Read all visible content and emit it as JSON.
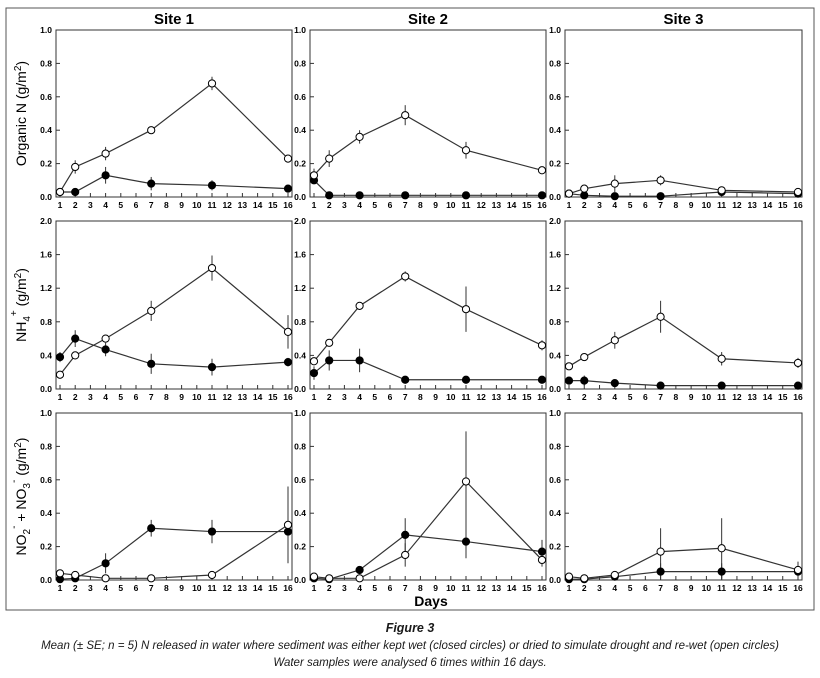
{
  "figure": {
    "x_axis_label": "Days",
    "caption_title": "Figure 3",
    "caption_line1": "Mean (± SE; n = 5) N released in water where sediment was either kept wet (closed circles) or dried to simulate drought and re-wet (open circles)",
    "caption_line2": "Water samples were analysed 6 times within 16 days."
  },
  "chart_data": {
    "type": "line",
    "sites": [
      "Site 1",
      "Site 2",
      "Site 3"
    ],
    "x": [
      1,
      2,
      4,
      7,
      11,
      16
    ],
    "x_ticks": [
      "1",
      "2",
      "3",
      "4",
      "5",
      "6",
      "7",
      "8",
      "9",
      "10",
      "11",
      "12",
      "13",
      "14",
      "15",
      "16"
    ],
    "xlim": [
      1,
      16
    ],
    "xlabel": "Days",
    "legend": {
      "wet": "kept wet (closed circles)",
      "dry": "dried and re-wet (open circles)"
    },
    "rows": [
      {
        "ylabel": "Organic N (g/m²)",
        "ylabel_parts": [
          "Organic N (g/m",
          "2",
          ")"
        ],
        "ylim": [
          0,
          1.0
        ],
        "y_ticks": [
          "0.0",
          "0.2",
          "0.4",
          "0.6",
          "0.8",
          "1.0"
        ],
        "y_tick_values": [
          0,
          0.2,
          0.4,
          0.6,
          0.8,
          1.0
        ],
        "panels": [
          {
            "series": [
              {
                "name": "wet",
                "values": [
                  0.03,
                  0.03,
                  0.13,
                  0.08,
                  0.07,
                  0.05
                ],
                "se": [
                  0.01,
                  0.01,
                  0.05,
                  0.04,
                  0.03,
                  0.01
                ]
              },
              {
                "name": "dry",
                "values": [
                  0.03,
                  0.18,
                  0.26,
                  0.4,
                  0.68,
                  0.23
                ],
                "se": [
                  0.01,
                  0.04,
                  0.04,
                  0.02,
                  0.04,
                  0.02
                ]
              }
            ]
          },
          {
            "series": [
              {
                "name": "wet",
                "values": [
                  0.1,
                  0.01,
                  0.01,
                  0.01,
                  0.01,
                  0.01
                ],
                "se": [
                  0.01,
                  0.005,
                  0.005,
                  0.005,
                  0.005,
                  0.005
                ]
              },
              {
                "name": "dry",
                "values": [
                  0.13,
                  0.23,
                  0.36,
                  0.49,
                  0.28,
                  0.16
                ],
                "se": [
                  0.04,
                  0.05,
                  0.04,
                  0.06,
                  0.05,
                  0.01
                ]
              }
            ]
          },
          {
            "series": [
              {
                "name": "wet",
                "values": [
                  0.02,
                  0.01,
                  0.005,
                  0.005,
                  0.03,
                  0.02
                ],
                "se": [
                  0.01,
                  0.005,
                  0.005,
                  0.005,
                  0.01,
                  0.01
                ]
              },
              {
                "name": "dry",
                "values": [
                  0.02,
                  0.05,
                  0.08,
                  0.1,
                  0.04,
                  0.03
                ],
                "se": [
                  0.01,
                  0.02,
                  0.05,
                  0.03,
                  0.02,
                  0.01
                ]
              }
            ]
          }
        ]
      },
      {
        "ylabel": "NH4+ (g/m²)",
        "ylabel_parts": [
          "NH",
          "4",
          "+",
          " (g/m",
          "2",
          ")"
        ],
        "ylim": [
          0,
          2.0
        ],
        "y_ticks": [
          "0.0",
          "0.4",
          "0.8",
          "1.2",
          "1.6",
          "2.0"
        ],
        "y_tick_values": [
          0,
          0.4,
          0.8,
          1.2,
          1.6,
          2.0
        ],
        "panels": [
          {
            "series": [
              {
                "name": "wet",
                "values": [
                  0.38,
                  0.6,
                  0.47,
                  0.3,
                  0.26,
                  0.32
                ],
                "se": [
                  0.06,
                  0.1,
                  0.08,
                  0.12,
                  0.1,
                  0.05
                ]
              },
              {
                "name": "dry",
                "values": [
                  0.17,
                  0.4,
                  0.6,
                  0.93,
                  1.44,
                  0.68
                ],
                "se": [
                  0.02,
                  0.03,
                  0.04,
                  0.12,
                  0.15,
                  0.2
                ]
              }
            ]
          },
          {
            "series": [
              {
                "name": "wet",
                "values": [
                  0.19,
                  0.34,
                  0.34,
                  0.11,
                  0.11,
                  0.11
                ],
                "se": [
                  0.08,
                  0.12,
                  0.14,
                  0.02,
                  0.02,
                  0.02
                ]
              },
              {
                "name": "dry",
                "values": [
                  0.33,
                  0.55,
                  0.99,
                  1.34,
                  0.95,
                  0.52
                ],
                "se": [
                  0.04,
                  0.04,
                  0.02,
                  0.06,
                  0.27,
                  0.06
                ]
              }
            ]
          },
          {
            "series": [
              {
                "name": "wet",
                "values": [
                  0.1,
                  0.1,
                  0.07,
                  0.04,
                  0.04,
                  0.04
                ],
                "se": [
                  0.04,
                  0.06,
                  0.03,
                  0.01,
                  0.01,
                  0.01
                ]
              },
              {
                "name": "dry",
                "values": [
                  0.27,
                  0.38,
                  0.58,
                  0.86,
                  0.36,
                  0.31
                ],
                "se": [
                  0.04,
                  0.04,
                  0.1,
                  0.19,
                  0.08,
                  0.06
                ]
              }
            ]
          }
        ]
      },
      {
        "ylabel": "NO2- + NO3- (g/m²)",
        "ylabel_parts": [
          "NO",
          "2",
          "-",
          " + NO",
          "3",
          "-",
          " (g/m",
          "2",
          ")"
        ],
        "ylim": [
          0,
          1.0
        ],
        "y_ticks": [
          "0.0",
          "0.2",
          "0.4",
          "0.6",
          "0.8",
          "1.0"
        ],
        "y_tick_values": [
          0,
          0.2,
          0.4,
          0.6,
          0.8,
          1.0
        ],
        "panels": [
          {
            "series": [
              {
                "name": "wet",
                "values": [
                  0.005,
                  0.01,
                  0.1,
                  0.31,
                  0.29,
                  0.29
                ],
                "se": [
                  0.005,
                  0.01,
                  0.06,
                  0.05,
                  0.07,
                  0.18
                ]
              },
              {
                "name": "dry",
                "values": [
                  0.04,
                  0.03,
                  0.01,
                  0.01,
                  0.03,
                  0.33
                ],
                "se": [
                  0.01,
                  0.01,
                  0.005,
                  0.005,
                  0.01,
                  0.23
                ]
              }
            ]
          },
          {
            "series": [
              {
                "name": "wet",
                "values": [
                  0.01,
                  0.005,
                  0.06,
                  0.27,
                  0.23,
                  0.17
                ],
                "se": [
                  0.005,
                  0.005,
                  0.01,
                  0.1,
                  0.1,
                  0.07
                ]
              },
              {
                "name": "dry",
                "values": [
                  0.02,
                  0.01,
                  0.01,
                  0.15,
                  0.59,
                  0.12
                ],
                "se": [
                  0.01,
                  0.005,
                  0.005,
                  0.07,
                  0.3,
                  0.04
                ]
              }
            ]
          },
          {
            "series": [
              {
                "name": "wet",
                "values": [
                  0.005,
                  0.005,
                  0.02,
                  0.05,
                  0.05,
                  0.05
                ],
                "se": [
                  0.005,
                  0.005,
                  0.01,
                  0.05,
                  0.05,
                  0.03
                ]
              },
              {
                "name": "dry",
                "values": [
                  0.02,
                  0.01,
                  0.03,
                  0.17,
                  0.19,
                  0.06
                ],
                "se": [
                  0.01,
                  0.01,
                  0.01,
                  0.14,
                  0.18,
                  0.05
                ]
              }
            ]
          }
        ]
      }
    ]
  }
}
